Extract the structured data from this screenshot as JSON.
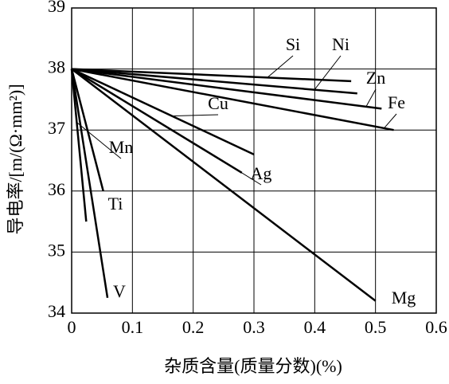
{
  "chart_data": {
    "type": "line",
    "x_label": "杂质含量(质量分数)(%)",
    "y_label": "导电率/[m/(Ω·mm²)]",
    "xlim": [
      0,
      0.6
    ],
    "xticks": [
      0,
      0.1,
      0.2,
      0.3,
      0.4,
      0.5,
      0.6
    ],
    "ylim": [
      34,
      39
    ],
    "yticks": [
      34,
      35,
      36,
      37,
      38,
      39
    ],
    "grid": true,
    "series": [
      {
        "name": "Si",
        "color": "#000000",
        "x": [
          0,
          0.46
        ],
        "values": [
          38,
          37.8
        ]
      },
      {
        "name": "Ni",
        "color": "#000000",
        "x": [
          0,
          0.47
        ],
        "values": [
          38,
          37.6
        ]
      },
      {
        "name": "Zn",
        "color": "#000000",
        "x": [
          0,
          0.51
        ],
        "values": [
          38,
          37.35
        ]
      },
      {
        "name": "Fe",
        "color": "#000000",
        "x": [
          0,
          0.53
        ],
        "values": [
          38,
          37.0
        ]
      },
      {
        "name": "Cu",
        "color": "#000000",
        "x": [
          0,
          0.3
        ],
        "values": [
          38,
          36.6
        ]
      },
      {
        "name": "Ag",
        "color": "#000000",
        "x": [
          0,
          0.28
        ],
        "values": [
          38,
          36.3
        ]
      },
      {
        "name": "Mg",
        "color": "#000000",
        "x": [
          0,
          0.5
        ],
        "values": [
          38,
          34.2
        ]
      },
      {
        "name": "Mn",
        "color": "#000000",
        "x": [
          0,
          0.024
        ],
        "values": [
          38,
          35.5
        ]
      },
      {
        "name": "Ti",
        "color": "#000000",
        "x": [
          0,
          0.052
        ],
        "values": [
          38,
          36.0
        ]
      },
      {
        "name": "V",
        "color": "#000000",
        "x": [
          0,
          0.059
        ],
        "values": [
          38,
          34.25
        ]
      }
    ]
  }
}
